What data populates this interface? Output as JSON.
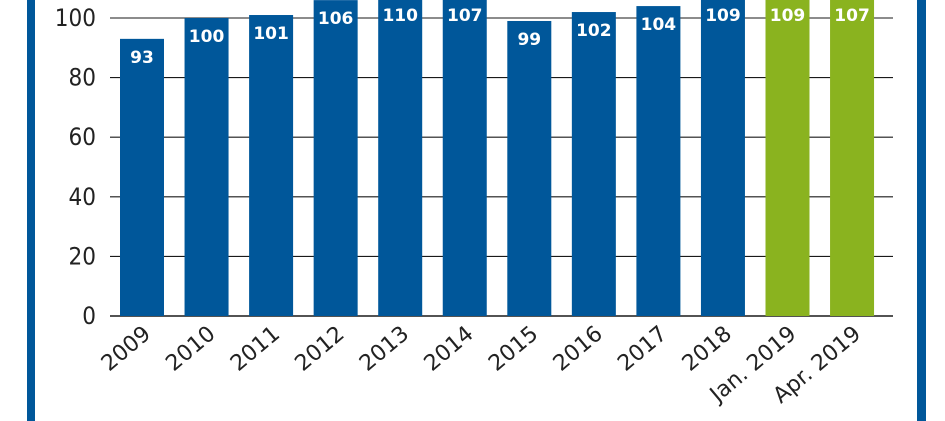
{
  "chart_data": {
    "type": "bar",
    "title": "",
    "xlabel": "",
    "ylabel": "",
    "categories": [
      "2009",
      "2010",
      "2011",
      "2012",
      "2013",
      "2014",
      "2015",
      "2016",
      "2017",
      "2018",
      "Jan. 2019",
      "Apr. 2019"
    ],
    "values": [
      93,
      100,
      101,
      106,
      110,
      107,
      99,
      102,
      104,
      109,
      109,
      107
    ],
    "bar_colors": [
      "#00579a",
      "#00579a",
      "#00579a",
      "#00579a",
      "#00579a",
      "#00579a",
      "#00579a",
      "#00579a",
      "#00579a",
      "#00579a",
      "#8ab31f",
      "#8ab31f"
    ],
    "y_ticks": [
      "0",
      "20",
      "40",
      "60",
      "80",
      "100"
    ],
    "ylim": [
      0,
      100
    ],
    "grid": true,
    "data_labels": true
  },
  "colors": {
    "frame": "#00579a",
    "actual": "#00579a",
    "forecast": "#8ab31f",
    "grid": "#1a1a1a"
  }
}
